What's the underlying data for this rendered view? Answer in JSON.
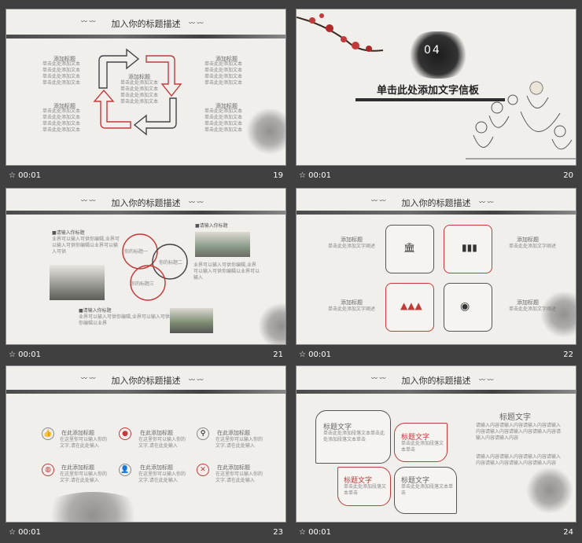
{
  "slides": [
    {
      "number": "19",
      "time": "00:01",
      "title": "加入你的标题描述",
      "blocks": [
        {
          "heading": "添加标题",
          "lines": [
            "单击此处添加文本",
            "单击此处添加文本",
            "单击此处添加文本",
            "单击此处添加文本"
          ]
        },
        {
          "heading": "添加标题",
          "lines": [
            "单击此处添加文本",
            "单击此处添加文本",
            "单击此处添加文本",
            "单击此处添加文本"
          ]
        },
        {
          "heading": "添加标题",
          "lines": [
            "单击此处添加文本",
            "单击此处添加文本",
            "单击此处添加文本",
            "单击此处添加文本"
          ]
        },
        {
          "heading": "添加标题",
          "lines": [
            "单击此处添加文本",
            "单击此处添加文本",
            "单击此处添加文本",
            "单击此处添加文本"
          ]
        },
        {
          "heading": "添加标题",
          "lines": [
            "单击此处添加文本",
            "单击此处添加文本",
            "单击此处添加文本",
            "单击此处添加文本"
          ]
        }
      ]
    },
    {
      "number": "20",
      "time": "00:01",
      "badge": "04",
      "headline": "单击此处添加文字信板"
    },
    {
      "number": "21",
      "time": "00:01",
      "title": "加入你的标题描述",
      "labels": [
        "你的标题一",
        "你的标题二",
        "你的标题三"
      ],
      "notes": [
        "■请输入你标题",
        "■请输入你标题",
        "■请输入你标题"
      ]
    },
    {
      "number": "22",
      "time": "00:01",
      "title": "加入你的标题描述",
      "items": [
        {
          "heading": "添加标题",
          "text": "单击此处添加文字阐述"
        },
        {
          "heading": "添加标题",
          "text": "单击此处添加文字阐述"
        },
        {
          "heading": "添加标题",
          "text": "单击此处添加文字阐述"
        },
        {
          "heading": "添加标题",
          "text": "单击此处添加文字阐述"
        }
      ]
    },
    {
      "number": "23",
      "time": "00:01",
      "title": "加入你的标题描述",
      "items": [
        "在此添加标题",
        "在此添加标题",
        "在此添加标题",
        "在此添加标题",
        "在此添加标题",
        "在此添加标题"
      ]
    },
    {
      "number": "24",
      "time": "00:01",
      "title": "加入你的标题描述",
      "boxes": [
        "标题文字",
        "标题文字",
        "标题文字",
        "标题文字"
      ],
      "right_title": "标题文字"
    }
  ],
  "colors": {
    "accent": "#c23a3a",
    "frame": "#404040"
  }
}
